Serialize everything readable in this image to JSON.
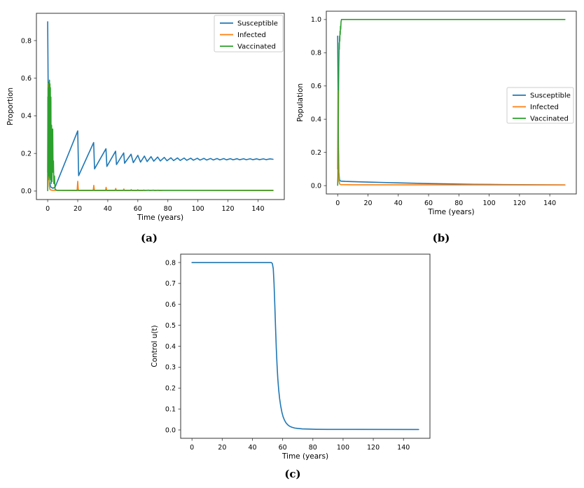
{
  "figure": {
    "background": "#ffffff"
  },
  "colors": {
    "susceptible": "#1f77b4",
    "infected": "#ff7f0e",
    "vaccinated": "#2ca02c",
    "axis": "#333333",
    "text": "#000000",
    "legend_border": "#cccccc",
    "legend_bg": "#ffffff"
  },
  "chart_data": [
    {
      "id": "a",
      "type": "line",
      "caption": "(a)",
      "title": "",
      "xlabel": "Time (years)",
      "ylabel": "Proportion",
      "xlim": [
        -7.5,
        157.5
      ],
      "ylim": [
        -0.045,
        0.945
      ],
      "xticks": [
        0,
        20,
        40,
        60,
        80,
        100,
        120,
        140
      ],
      "xtick_labels": [
        "0",
        "20",
        "40",
        "60",
        "80",
        "100",
        "120",
        "140"
      ],
      "yticks": [
        0.0,
        0.2,
        0.4,
        0.6,
        0.8
      ],
      "ytick_labels": [
        "0.0",
        "0.2",
        "0.4",
        "0.6",
        "0.8"
      ],
      "grid": false,
      "legend": {
        "show": true,
        "loc": "upper right",
        "entries": [
          "Susceptible",
          "Infected",
          "Vaccinated"
        ]
      },
      "series": [
        {
          "name": "Susceptible",
          "color": "#1f77b4",
          "points": [
            [
              0,
              0.9
            ],
            [
              0.45,
              0.4
            ],
            [
              0.8,
              0.13
            ],
            [
              1.2,
              0.05
            ],
            [
              2,
              0.022
            ],
            [
              3.5,
              0.015
            ],
            [
              5,
              0.022
            ],
            [
              20,
              0.32
            ],
            [
              20.6,
              0.082
            ],
            [
              30.6,
              0.258
            ],
            [
              31.2,
              0.118
            ],
            [
              38.8,
              0.225
            ],
            [
              39.4,
              0.131
            ],
            [
              45.2,
              0.212
            ],
            [
              45.8,
              0.141
            ],
            [
              50.6,
              0.203
            ],
            [
              51.2,
              0.148
            ],
            [
              55.5,
              0.196
            ],
            [
              57,
              0.151
            ],
            [
              60,
              0.19
            ],
            [
              61.8,
              0.154
            ],
            [
              64.4,
              0.186
            ],
            [
              66.2,
              0.157
            ],
            [
              68.8,
              0.183
            ],
            [
              70.6,
              0.159
            ],
            [
              73.2,
              0.181
            ],
            [
              75,
              0.16
            ],
            [
              77.6,
              0.179
            ],
            [
              79.4,
              0.161
            ],
            [
              82,
              0.177
            ],
            [
              83.8,
              0.162
            ],
            [
              86.4,
              0.1762
            ],
            [
              88.2,
              0.1628
            ],
            [
              90.8,
              0.1755
            ],
            [
              92.6,
              0.1635
            ],
            [
              95.2,
              0.1748
            ],
            [
              97,
              0.1641
            ],
            [
              99.6,
              0.1743
            ],
            [
              101.4,
              0.1646
            ],
            [
              104,
              0.1738
            ],
            [
              105.8,
              0.165
            ],
            [
              108.4,
              0.1734
            ],
            [
              110.2,
              0.1654
            ],
            [
              112.8,
              0.173
            ],
            [
              114.6,
              0.1657
            ],
            [
              117.2,
              0.1727
            ],
            [
              119,
              0.166
            ],
            [
              121.6,
              0.1724
            ],
            [
              123.4,
              0.1662
            ],
            [
              126,
              0.1721
            ],
            [
              127.8,
              0.1664
            ],
            [
              130.4,
              0.1719
            ],
            [
              132.2,
              0.1666
            ],
            [
              134.8,
              0.1717
            ],
            [
              136.6,
              0.1668
            ],
            [
              139.2,
              0.1715
            ],
            [
              141,
              0.1669
            ],
            [
              143.6,
              0.1713
            ],
            [
              145.4,
              0.167
            ],
            [
              148,
              0.1712
            ],
            [
              150,
              0.169
            ]
          ]
        },
        {
          "name": "Infected",
          "color": "#ff7f0e",
          "points": [
            [
              0,
              0.1
            ],
            [
              0.2,
              0.57
            ],
            [
              0.5,
              0.28
            ],
            [
              0.8,
              0.09
            ],
            [
              1.1,
              0.025
            ],
            [
              1.6,
              0.007
            ],
            [
              3,
              0.004
            ],
            [
              19.6,
              0.003
            ],
            [
              20,
              0.052
            ],
            [
              20.4,
              0.003
            ],
            [
              30.3,
              0.003
            ],
            [
              30.7,
              0.03
            ],
            [
              31.1,
              0.003
            ],
            [
              38.5,
              0.003
            ],
            [
              38.9,
              0.02
            ],
            [
              39.3,
              0.003
            ],
            [
              44.9,
              0.003
            ],
            [
              45.3,
              0.014
            ],
            [
              45.7,
              0.003
            ],
            [
              50.3,
              0.003
            ],
            [
              50.7,
              0.011
            ],
            [
              51.1,
              0.003
            ],
            [
              55.2,
              0.003
            ],
            [
              55.6,
              0.008
            ],
            [
              56,
              0.003
            ],
            [
              59.6,
              0.003
            ],
            [
              60,
              0.007
            ],
            [
              60.4,
              0.003
            ],
            [
              63.6,
              0.003
            ],
            [
              64,
              0.006
            ],
            [
              64.4,
              0.003
            ],
            [
              67.3,
              0.005
            ],
            [
              68,
              0.003
            ],
            [
              70.5,
              0.005
            ],
            [
              71.2,
              0.003
            ],
            [
              73.6,
              0.0045
            ],
            [
              74.3,
              0.003
            ],
            [
              77,
              0.004
            ],
            [
              81,
              0.004
            ],
            [
              150,
              0.003
            ]
          ]
        },
        {
          "name": "Vaccinated",
          "color": "#2ca02c",
          "points": [
            [
              0,
              0.002
            ],
            [
              0.12,
              0.5
            ],
            [
              0.25,
              0.06
            ],
            [
              0.38,
              0.55
            ],
            [
              0.5,
              0.1
            ],
            [
              0.63,
              0.57
            ],
            [
              0.76,
              0.08
            ],
            [
              0.9,
              0.58
            ],
            [
              1.05,
              0.12
            ],
            [
              1.2,
              0.59
            ],
            [
              1.35,
              0.07
            ],
            [
              1.5,
              0.57
            ],
            [
              1.65,
              0.12
            ],
            [
              1.8,
              0.55
            ],
            [
              1.95,
              0.06
            ],
            [
              2.15,
              0.5
            ],
            [
              2.35,
              0.04
            ],
            [
              2.6,
              0.35
            ],
            [
              2.85,
              0.05
            ],
            [
              3.1,
              0.22
            ],
            [
              3.35,
              0.33
            ],
            [
              3.6,
              0.1
            ],
            [
              3.85,
              0.16
            ],
            [
              4.1,
              0.04
            ],
            [
              4.5,
              0.08
            ],
            [
              4.9,
              0.01
            ],
            [
              6,
              0.004
            ],
            [
              150,
              0.004
            ]
          ]
        }
      ]
    },
    {
      "id": "b",
      "type": "line",
      "caption": "(b)",
      "title": "",
      "xlabel": "Time (years)",
      "ylabel": "Population",
      "xlim": [
        -7.5,
        157.5
      ],
      "ylim": [
        -0.05,
        1.05
      ],
      "xticks": [
        0,
        20,
        40,
        60,
        80,
        100,
        120,
        140
      ],
      "xtick_labels": [
        "0",
        "20",
        "40",
        "60",
        "80",
        "100",
        "120",
        "140"
      ],
      "yticks": [
        0.0,
        0.2,
        0.4,
        0.6,
        0.8,
        1.0
      ],
      "ytick_labels": [
        "0.0",
        "0.2",
        "0.4",
        "0.6",
        "0.8",
        "1.0"
      ],
      "grid": false,
      "legend": {
        "show": true,
        "loc": "center right",
        "entries": [
          "Susceptible",
          "Infected",
          "Vaccinated"
        ]
      },
      "series": [
        {
          "name": "Susceptible",
          "color": "#1f77b4",
          "points": [
            [
              0,
              0.9
            ],
            [
              0.25,
              0.6
            ],
            [
              0.5,
              0.25
            ],
            [
              0.8,
              0.08
            ],
            [
              1.2,
              0.035
            ],
            [
              2,
              0.027
            ],
            [
              5,
              0.0255
            ],
            [
              10,
              0.024
            ],
            [
              20,
              0.0215
            ],
            [
              30,
              0.019
            ],
            [
              40,
              0.0165
            ],
            [
              50,
              0.0145
            ],
            [
              60,
              0.0125
            ],
            [
              70,
              0.011
            ],
            [
              80,
              0.0095
            ],
            [
              90,
              0.008
            ],
            [
              100,
              0.007
            ],
            [
              110,
              0.0062
            ],
            [
              120,
              0.0056
            ],
            [
              130,
              0.005
            ],
            [
              140,
              0.0046
            ],
            [
              150,
              0.0042
            ]
          ]
        },
        {
          "name": "Infected",
          "color": "#ff7f0e",
          "points": [
            [
              0,
              0.1
            ],
            [
              0.15,
              0.57
            ],
            [
              0.35,
              0.3
            ],
            [
              0.6,
              0.1
            ],
            [
              0.9,
              0.03
            ],
            [
              1.3,
              0.01
            ],
            [
              2,
              0.006
            ],
            [
              10,
              0.005
            ],
            [
              50,
              0.0045
            ],
            [
              150,
              0.004
            ]
          ]
        },
        {
          "name": "Vaccinated",
          "color": "#2ca02c",
          "points": [
            [
              0,
              0.002
            ],
            [
              0.15,
              0.05
            ],
            [
              0.3,
              0.18
            ],
            [
              0.45,
              0.38
            ],
            [
              0.6,
              0.58
            ],
            [
              0.75,
              0.72
            ],
            [
              0.9,
              0.8
            ],
            [
              1,
              0.86
            ],
            [
              1.1,
              0.82
            ],
            [
              1.25,
              0.9
            ],
            [
              1.4,
              0.87
            ],
            [
              1.55,
              0.93
            ],
            [
              1.7,
              0.91
            ],
            [
              1.85,
              0.96
            ],
            [
              2,
              0.94
            ],
            [
              2.2,
              0.985
            ],
            [
              2.5,
              1.0
            ],
            [
              3,
              1.0
            ],
            [
              150,
              1.0
            ]
          ]
        }
      ]
    },
    {
      "id": "c",
      "type": "line",
      "caption": "(c)",
      "title": "",
      "xlabel": "Time (years)",
      "ylabel": "Control u(t)",
      "xlim": [
        -7.5,
        157.5
      ],
      "ylim": [
        -0.04,
        0.84
      ],
      "xticks": [
        0,
        20,
        40,
        60,
        80,
        100,
        120,
        140
      ],
      "xtick_labels": [
        "0",
        "20",
        "40",
        "60",
        "80",
        "100",
        "120",
        "140"
      ],
      "yticks": [
        0.0,
        0.1,
        0.2,
        0.3,
        0.4,
        0.5,
        0.6,
        0.7,
        0.8
      ],
      "ytick_labels": [
        "0.0",
        "0.1",
        "0.2",
        "0.3",
        "0.4",
        "0.5",
        "0.6",
        "0.7",
        "0.8"
      ],
      "grid": false,
      "legend": {
        "show": false,
        "loc": "",
        "entries": []
      },
      "series": [
        {
          "name": "u(t)",
          "color": "#1f77b4",
          "points": [
            [
              0,
              0.8
            ],
            [
              52.5,
              0.8
            ],
            [
              53.2,
              0.795
            ],
            [
              53.8,
              0.77
            ],
            [
              54.3,
              0.7
            ],
            [
              54.8,
              0.6
            ],
            [
              55.3,
              0.49
            ],
            [
              55.8,
              0.39
            ],
            [
              56.3,
              0.31
            ],
            [
              56.8,
              0.245
            ],
            [
              57.4,
              0.19
            ],
            [
              58,
              0.15
            ],
            [
              58.7,
              0.115
            ],
            [
              59.5,
              0.085
            ],
            [
              60.3,
              0.063
            ],
            [
              61.2,
              0.047
            ],
            [
              62.2,
              0.034
            ],
            [
              63.3,
              0.025
            ],
            [
              64.5,
              0.018
            ],
            [
              66,
              0.013
            ],
            [
              68,
              0.009
            ],
            [
              70,
              0.007
            ],
            [
              73,
              0.005
            ],
            [
              77,
              0.004
            ],
            [
              82,
              0.003
            ],
            [
              90,
              0.0025
            ],
            [
              150,
              0.002
            ]
          ]
        }
      ]
    }
  ]
}
